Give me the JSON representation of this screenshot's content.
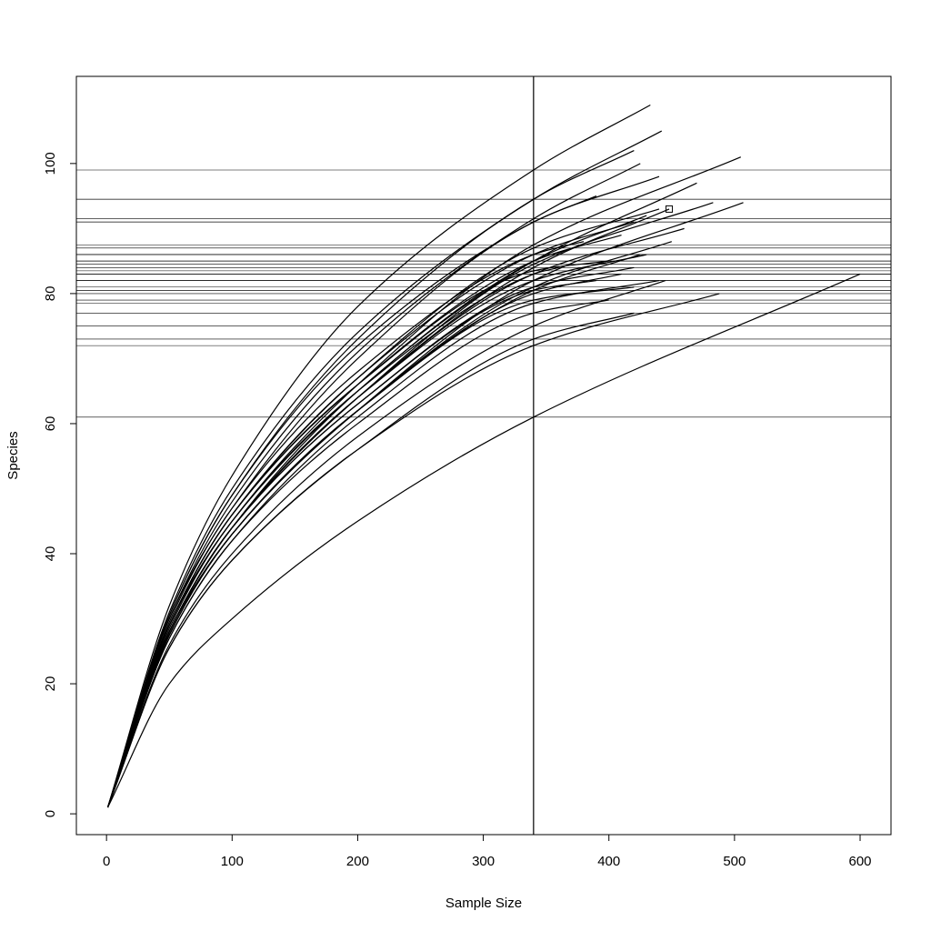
{
  "chart_data": {
    "type": "line",
    "x_label": "Sample Size",
    "y_label": "Species",
    "color": "#000000",
    "xlim": [
      -24,
      624.6
    ],
    "ylim": [
      -3.2,
      113.4
    ],
    "xticks": [
      0,
      100,
      200,
      300,
      400,
      500,
      600
    ],
    "yticks": [
      0,
      20,
      40,
      60,
      80,
      100
    ],
    "vline": 340,
    "marker": {
      "x": 448,
      "y": 93
    },
    "series": [
      {
        "x": [
          1,
          50,
          100,
          200,
          340,
          433
        ],
        "values": [
          1,
          32,
          52,
          78,
          99,
          109
        ]
      },
      {
        "x": [
          1,
          50,
          100,
          200,
          340,
          442
        ],
        "values": [
          1,
          31,
          50,
          74,
          94.5,
          105
        ]
      },
      {
        "x": [
          1,
          50,
          100,
          200,
          340,
          420
        ],
        "values": [
          1,
          30.5,
          49,
          73,
          94.5,
          102
        ]
      },
      {
        "x": [
          1,
          50,
          100,
          200,
          340,
          425
        ],
        "values": [
          1,
          30,
          48,
          71,
          91.5,
          100
        ]
      },
      {
        "x": [
          1,
          50,
          100,
          200,
          340,
          440
        ],
        "values": [
          1,
          30,
          47,
          70,
          91,
          98
        ]
      },
      {
        "x": [
          1,
          50,
          100,
          200,
          340,
          505
        ],
        "values": [
          1,
          29,
          45,
          66,
          87.5,
          101
        ]
      },
      {
        "x": [
          1,
          50,
          100,
          200,
          340,
          390
        ],
        "values": [
          1,
          30.5,
          49,
          72,
          91,
          95
        ]
      },
      {
        "x": [
          1,
          50,
          100,
          200,
          340,
          470
        ],
        "values": [
          1,
          28,
          44,
          65,
          85,
          97
        ]
      },
      {
        "x": [
          1,
          50,
          100,
          200,
          340,
          483
        ],
        "values": [
          1,
          28,
          44,
          64,
          84.5,
          94
        ]
      },
      {
        "x": [
          1,
          50,
          100,
          200,
          340,
          507
        ],
        "values": [
          1,
          28,
          43,
          62,
          82,
          94
        ]
      },
      {
        "x": [
          1,
          50,
          100,
          200,
          340,
          460
        ],
        "values": [
          1,
          28,
          44,
          64,
          83,
          90
        ]
      },
      {
        "x": [
          1,
          50,
          100,
          200,
          340,
          440
        ],
        "values": [
          1,
          29,
          46,
          67,
          87,
          93
        ]
      },
      {
        "x": [
          1,
          50,
          100,
          200,
          340,
          430
        ],
        "values": [
          1,
          29,
          45,
          65,
          85,
          92
        ]
      },
      {
        "x": [
          1,
          50,
          100,
          200,
          340,
          448
        ],
        "values": [
          1,
          28,
          44,
          64,
          84,
          93
        ]
      },
      {
        "x": [
          1,
          50,
          100,
          200,
          340,
          420
        ],
        "values": [
          1,
          29,
          46,
          67,
          86,
          91
        ]
      },
      {
        "x": [
          1,
          50,
          100,
          200,
          340,
          410
        ],
        "values": [
          1,
          29,
          46,
          66,
          85,
          89
        ]
      },
      {
        "x": [
          1,
          50,
          100,
          200,
          340,
          450
        ],
        "values": [
          1,
          27.5,
          43,
          62,
          81,
          88
        ]
      },
      {
        "x": [
          1,
          50,
          100,
          200,
          340,
          430
        ],
        "values": [
          1,
          28,
          44,
          64,
          82,
          86
        ]
      },
      {
        "x": [
          1,
          50,
          100,
          200,
          340,
          420
        ],
        "values": [
          1,
          28,
          44,
          63,
          81,
          84
        ]
      },
      {
        "x": [
          1,
          50,
          100,
          200,
          340,
          440
        ],
        "values": [
          1,
          27,
          42,
          61,
          78.5,
          82
        ]
      },
      {
        "x": [
          1,
          50,
          100,
          200,
          340,
          420
        ],
        "values": [
          1,
          27.5,
          43,
          62,
          79,
          81
        ]
      },
      {
        "x": [
          1,
          50,
          100,
          200,
          340,
          488
        ],
        "values": [
          1,
          25.5,
          39,
          56,
          72,
          80
        ]
      },
      {
        "x": [
          1,
          50,
          100,
          200,
          340,
          420
        ],
        "values": [
          1,
          25.5,
          39,
          56,
          73,
          77
        ]
      },
      {
        "x": [
          1,
          50,
          100,
          200,
          340,
          600
        ],
        "values": [
          1,
          20,
          30,
          45,
          61,
          83
        ]
      },
      {
        "x": [
          1,
          50,
          100,
          200,
          340,
          400
        ],
        "values": [
          1,
          29,
          46,
          66,
          83.5,
          85
        ]
      },
      {
        "x": [
          1,
          50,
          100,
          200,
          340,
          380
        ],
        "values": [
          1,
          29.5,
          47,
          68,
          86,
          88
        ]
      },
      {
        "x": [
          1,
          50,
          100,
          200,
          340,
          410
        ],
        "values": [
          1,
          27.5,
          43,
          62,
          80,
          83
        ]
      },
      {
        "x": [
          1,
          50,
          100,
          200,
          340,
          400
        ],
        "values": [
          1,
          27,
          42,
          60,
          77,
          79
        ]
      },
      {
        "x": [
          1,
          50,
          100,
          200,
          340,
          425
        ],
        "values": [
          1,
          27.5,
          43,
          62,
          80.5,
          86
        ]
      },
      {
        "x": [
          1,
          50,
          100,
          200,
          340,
          445
        ],
        "values": [
          1,
          26,
          40,
          58,
          75,
          82
        ]
      },
      {
        "x": [
          1,
          50,
          100,
          200,
          340,
          390
        ],
        "values": [
          1,
          28,
          44,
          63,
          80.5,
          82
        ]
      },
      {
        "x": [
          1,
          50,
          100,
          200,
          340,
          360
        ],
        "values": [
          1,
          28.5,
          45,
          65,
          83,
          84
        ]
      }
    ]
  }
}
